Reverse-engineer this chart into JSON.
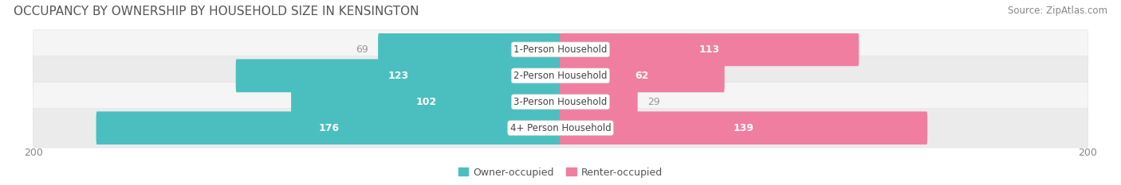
{
  "title": "OCCUPANCY BY OWNERSHIP BY HOUSEHOLD SIZE IN KENSINGTON",
  "source": "Source: ZipAtlas.com",
  "categories": [
    "1-Person Household",
    "2-Person Household",
    "3-Person Household",
    "4+ Person Household"
  ],
  "owner_values": [
    69,
    123,
    102,
    176
  ],
  "renter_values": [
    113,
    62,
    29,
    139
  ],
  "axis_max": 200,
  "owner_color": "#4BBFBF",
  "renter_color": "#F07EA0",
  "row_bg_color": "#EBEBEB",
  "row_bg_color2": "#F5F5F5",
  "label_color_inside": "#FFFFFF",
  "label_color_outside": "#999999",
  "title_fontsize": 11,
  "source_fontsize": 8.5,
  "label_fontsize": 9,
  "category_fontsize": 8.5,
  "legend_fontsize": 9,
  "axis_label_fontsize": 9,
  "background_color": "#FFFFFF",
  "owner_inside_threshold": 80,
  "renter_inside_threshold": 40
}
